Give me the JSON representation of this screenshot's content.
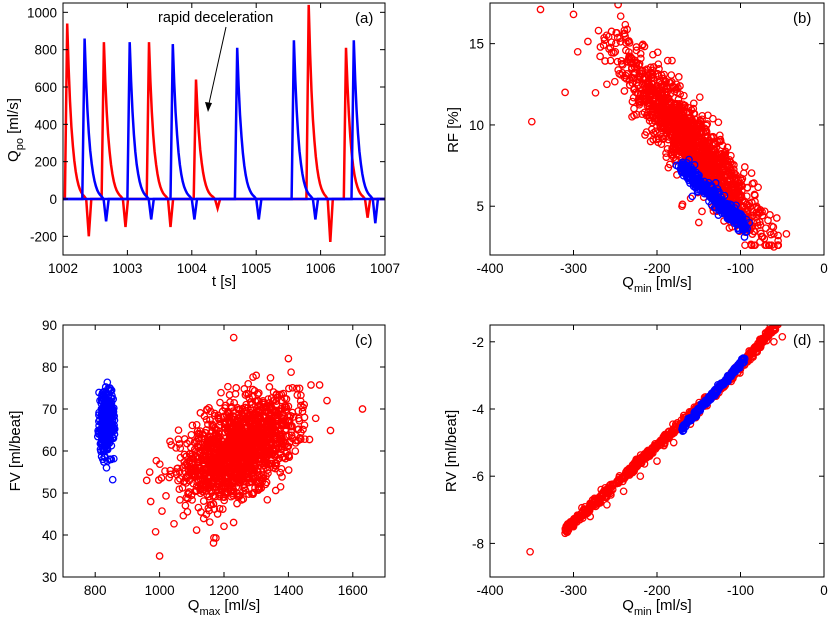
{
  "figure": {
    "title": ""
  },
  "colors": {
    "model_a": "#ff0000",
    "model_b": "#0000ff",
    "axis": "#000000"
  },
  "chart_data": [
    {
      "id": "a",
      "type": "line",
      "panel_label": "(a)",
      "title": "",
      "xlabel": "t [s]",
      "ylabel_main": "Q",
      "ylabel_sub": "po",
      "ylabel_tail": " [ml/s]",
      "xlim": [
        1002,
        1007
      ],
      "ylim": [
        -300,
        1050
      ],
      "xticks": [
        1002,
        1003,
        1004,
        1005,
        1006,
        1007
      ],
      "yticks": [
        -200,
        0,
        200,
        400,
        600,
        800,
        1000
      ],
      "annotation": {
        "text": "rapid deceleration",
        "x": 1004.35,
        "y": 1000,
        "arrow_to": [
          1004.05,
          600
        ]
      },
      "series": [
        {
          "name": "red",
          "color": "#ff0000",
          "beats": [
            {
              "t": 1002.03,
              "peak": 940,
              "neg": -200
            },
            {
              "t": 1002.6,
              "peak": 840,
              "neg": -150
            },
            {
              "t": 1003.3,
              "peak": 840,
              "neg": -150
            },
            {
              "t": 1004.03,
              "peak": 640,
              "neg": -50
            },
            {
              "t": 1005.78,
              "peak": 1040,
              "neg": -230
            },
            {
              "t": 1006.36,
              "peak": 810,
              "neg": -100
            }
          ]
        },
        {
          "name": "blue",
          "color": "#0000ff",
          "beats": [
            {
              "t": 1002.3,
              "peak": 860,
              "neg": -120
            },
            {
              "t": 1003.0,
              "peak": 840,
              "neg": -110
            },
            {
              "t": 1003.67,
              "peak": 830,
              "neg": -110
            },
            {
              "t": 1004.67,
              "peak": 810,
              "neg": -110
            },
            {
              "t": 1005.55,
              "peak": 850,
              "neg": -110
            },
            {
              "t": 1006.48,
              "peak": 850,
              "neg": -130
            }
          ]
        }
      ]
    },
    {
      "id": "b",
      "type": "scatter",
      "panel_label": "(b)",
      "title": "",
      "xlabel_main": "Q",
      "xlabel_sub": "min",
      "xlabel_tail": " [ml/s]",
      "ylabel": "RF [%]",
      "xlim": [
        -400,
        0
      ],
      "ylim": [
        2,
        17.5
      ],
      "xticks": [
        -400,
        -300,
        -200,
        -100,
        0
      ],
      "yticks": [
        5,
        10,
        15
      ],
      "series": [
        {
          "name": "red",
          "color": "#ff0000",
          "points": [
            [
              -260,
              12.5
            ],
            [
              -230,
              10.5
            ],
            [
              -200,
              9.5
            ],
            [
              -180,
              8
            ],
            [
              -160,
              7
            ],
            [
              -140,
              6
            ],
            [
              -120,
              5
            ],
            [
              -100,
              4.5
            ],
            [
              -80,
              4
            ],
            [
              -60,
              3.3
            ],
            [
              -220,
              13
            ],
            [
              -250,
              14.5
            ],
            [
              -300,
              16.8
            ],
            [
              -295,
              14.5
            ],
            [
              -350,
              10.2
            ],
            [
              -310,
              12.0
            ],
            [
              -270,
              15.8
            ],
            [
              -150,
              4.0
            ],
            [
              -170,
              5.0
            ],
            [
              -60,
              2.5
            ],
            [
              -45,
              3.3
            ]
          ]
        },
        {
          "name": "blue",
          "color": "#0000ff",
          "points": [
            [
              -170,
              7.6
            ],
            [
              -160,
              7.2
            ],
            [
              -150,
              6.6
            ],
            [
              -140,
              6.0
            ],
            [
              -130,
              5.4
            ],
            [
              -120,
              4.9
            ],
            [
              -110,
              4.5
            ],
            [
              -100,
              4.0
            ],
            [
              -95,
              3.7
            ]
          ]
        }
      ]
    },
    {
      "id": "c",
      "type": "scatter",
      "panel_label": "(c)",
      "title": "",
      "xlabel_main": "Q",
      "xlabel_sub": "max",
      "xlabel_tail": " [ml/s]",
      "ylabel": "FV [ml/beat]",
      "xlim": [
        700,
        1700
      ],
      "ylim": [
        30,
        90
      ],
      "xticks": [
        800,
        1000,
        1200,
        1400,
        1600
      ],
      "yticks": [
        30,
        40,
        50,
        60,
        70,
        80,
        90
      ],
      "series": [
        {
          "name": "red",
          "color": "#ff0000",
          "points": [
            [
              1050,
              55
            ],
            [
              1100,
              57
            ],
            [
              1150,
              58
            ],
            [
              1200,
              60
            ],
            [
              1250,
              62
            ],
            [
              1300,
              64
            ],
            [
              1350,
              65
            ],
            [
              1400,
              66
            ],
            [
              1450,
              68
            ],
            [
              1000,
              35
            ],
            [
              1630,
              70
            ],
            [
              1230,
              87
            ],
            [
              1520,
              72
            ],
            [
              960,
              53
            ],
            [
              1080,
              47
            ],
            [
              1180,
              45
            ],
            [
              1300,
              78
            ],
            [
              1400,
              82
            ]
          ]
        },
        {
          "name": "blue",
          "color": "#0000ff",
          "points": [
            [
              820,
              70
            ],
            [
              830,
              66
            ],
            [
              840,
              63
            ],
            [
              830,
              60
            ],
            [
              845,
              75
            ],
            [
              860,
              64
            ],
            [
              815,
              72
            ],
            [
              835,
              56
            ],
            [
              850,
              58
            ]
          ]
        }
      ]
    },
    {
      "id": "d",
      "type": "scatter",
      "panel_label": "(d)",
      "title": "",
      "xlabel_main": "Q",
      "xlabel_sub": "min",
      "xlabel_tail": " [ml/s]",
      "ylabel": "RV [ml/beat]",
      "xlim": [
        -400,
        0
      ],
      "ylim": [
        -9,
        -1.5
      ],
      "xticks": [
        -400,
        -300,
        -200,
        -100,
        0
      ],
      "yticks": [
        -8,
        -6,
        -4,
        -2
      ],
      "series": [
        {
          "name": "red",
          "color": "#ff0000",
          "points": [
            [
              -352,
              -8.25
            ],
            [
              -310,
              -7.7
            ],
            [
              -300,
              -7.5
            ],
            [
              -280,
              -7.2
            ],
            [
              -260,
              -6.85
            ],
            [
              -240,
              -6.45
            ],
            [
              -220,
              -6.0
            ],
            [
              -200,
              -5.55
            ],
            [
              -180,
              -5.0
            ],
            [
              -160,
              -4.45
            ],
            [
              -140,
              -3.9
            ],
            [
              -120,
              -3.35
            ],
            [
              -100,
              -2.8
            ],
            [
              -80,
              -2.3
            ],
            [
              -60,
              -2.0
            ],
            [
              -50,
              -1.85
            ]
          ]
        },
        {
          "name": "blue",
          "color": "#0000ff",
          "points": [
            [
              -170,
              -4.6
            ],
            [
              -160,
              -4.3
            ],
            [
              -150,
              -4.0
            ],
            [
              -140,
              -3.8
            ],
            [
              -130,
              -3.5
            ],
            [
              -120,
              -3.2
            ],
            [
              -110,
              -2.9
            ],
            [
              -100,
              -2.6
            ],
            [
              -95,
              -2.5
            ]
          ]
        }
      ]
    }
  ]
}
